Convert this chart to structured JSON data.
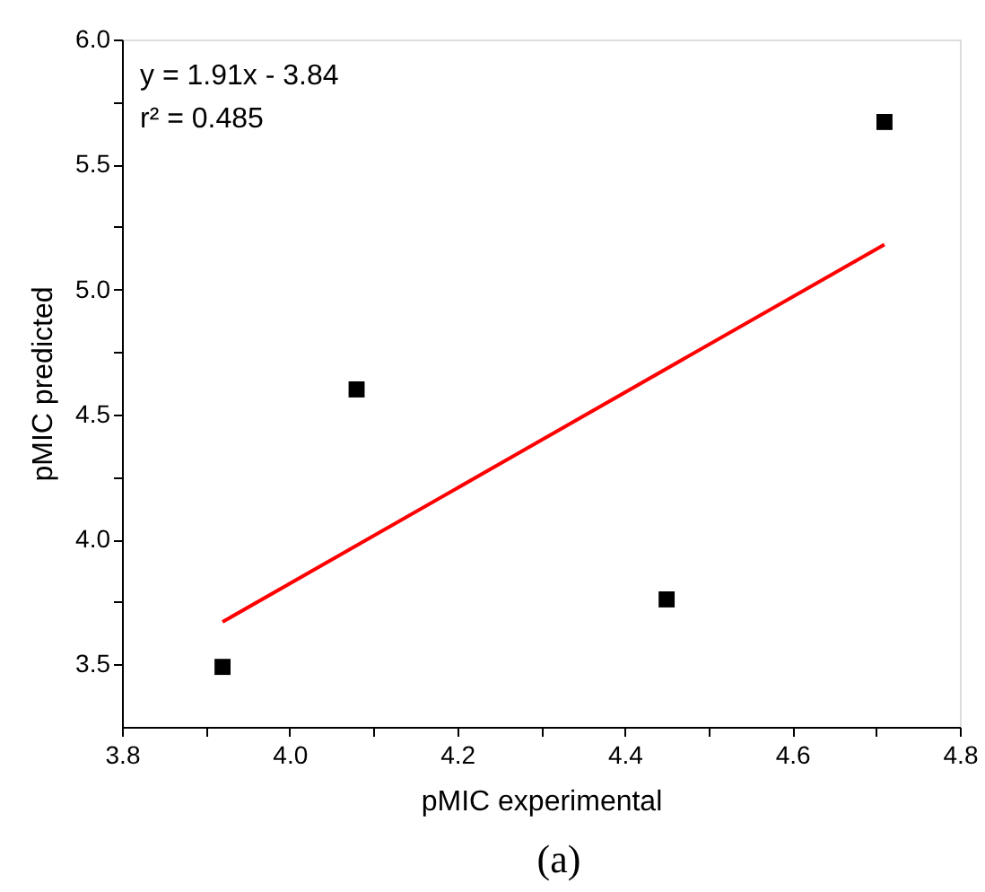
{
  "chart_data": {
    "type": "scatter",
    "xlabel": "pMIC experimental",
    "ylabel": "pMIC predicted",
    "annotations": [
      "y = 1.91x - 3.84",
      "r² = 0.485",
      "(a)"
    ],
    "x": [
      3.92,
      4.08,
      4.45,
      4.71
    ],
    "series": [
      {
        "type": "scatter",
        "color": "#000000",
        "marker": "square",
        "values": [
          3.49,
          4.6,
          3.76,
          5.67
        ]
      },
      {
        "type": "line",
        "color": "#ff0000",
        "line_style": "solid",
        "marker": "none",
        "x": [
          3.92,
          4.71
        ],
        "values": [
          3.67,
          5.18
        ]
      }
    ],
    "xlim": [
      3.8,
      4.8
    ],
    "ylim": [
      3.25,
      6.0
    ],
    "xticks": [
      3.8,
      {
        "value": 3.9,
        "label": null
      },
      {
        "value": 4.0,
        "label": "4.0"
      },
      {
        "value": 4.1,
        "label": null
      },
      4.2,
      {
        "value": 4.3,
        "label": null
      },
      4.4,
      {
        "value": 4.5,
        "label": null
      },
      4.6,
      {
        "value": 4.7,
        "label": null
      },
      4.8
    ],
    "yticks": [
      {
        "value": 3.5,
        "label": "3.5"
      },
      {
        "value": 3.75,
        "label": null
      },
      {
        "value": 4.0,
        "label": "4.0"
      },
      {
        "value": 4.25,
        "label": null
      },
      {
        "value": 4.5,
        "label": "4.5"
      },
      {
        "value": 4.75,
        "label": null
      },
      {
        "value": 5.0,
        "label": "5.0"
      },
      {
        "value": 5.25,
        "label": null
      },
      {
        "value": 5.5,
        "label": "5.5"
      },
      {
        "value": 5.75,
        "label": null
      },
      {
        "value": 6.0,
        "label": "6.0"
      }
    ],
    "grid": false
  }
}
